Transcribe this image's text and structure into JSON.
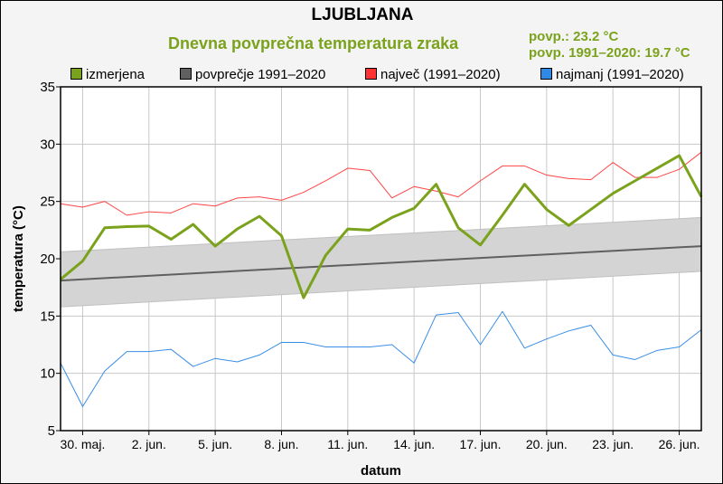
{
  "title": "LJUBLJANA",
  "subtitle": "Dnevna povprečna temperatura zraka",
  "stats": {
    "mean": "povp.: 23.2 °C",
    "mean_ref": "povp. 1991–2020: 19.7 °C"
  },
  "chart_data": {
    "type": "line",
    "xlabel": "datum",
    "ylabel": "temperatura (°C)",
    "ylim": [
      5,
      35
    ],
    "yticks": [
      5,
      10,
      15,
      20,
      25,
      30,
      35
    ],
    "x": [
      "29. maj.",
      "30. maj.",
      "31. maj.",
      "1. jun.",
      "2. jun.",
      "3. jun.",
      "4. jun.",
      "5. jun.",
      "6. jun.",
      "7. jun.",
      "8. jun.",
      "9. jun.",
      "10. jun.",
      "11. jun.",
      "12. jun.",
      "13. jun.",
      "14. jun.",
      "15. jun.",
      "16. jun.",
      "17. jun.",
      "18. jun.",
      "19. jun.",
      "20. jun.",
      "21. jun.",
      "22. jun.",
      "23. jun.",
      "24. jun.",
      "25. jun.",
      "26. jun.",
      "27. jun."
    ],
    "xtick_labels": [
      "30. maj.",
      "2. jun.",
      "5. jun.",
      "8. jun.",
      "11. jun.",
      "14. jun.",
      "17. jun.",
      "20. jun.",
      "23. jun.",
      "26. jun."
    ],
    "grid": true,
    "legend_position": "top",
    "series": [
      {
        "name": "izmerjena",
        "color": "#7ba21c",
        "values": [
          18.2,
          19.8,
          22.7,
          22.8,
          22.85,
          21.7,
          23.0,
          21.1,
          22.6,
          23.7,
          22.0,
          16.6,
          20.3,
          22.6,
          22.5,
          23.6,
          24.4,
          26.5,
          22.7,
          21.2,
          23.8,
          26.5,
          24.3,
          22.9,
          24.3,
          25.7,
          26.8,
          27.9,
          29.0,
          25.4
        ]
      },
      {
        "name": "povprečje 1991–2020",
        "color": "#606060",
        "start": 18.1,
        "end": 21.1,
        "band_low": [
          15.8,
          18.9
        ],
        "band_high": [
          20.6,
          23.6
        ],
        "band_color": "#d4d4d4"
      },
      {
        "name": "največ (1991–2020)",
        "color": "#ff4444",
        "values": [
          24.8,
          24.5,
          25.0,
          23.8,
          24.1,
          24.0,
          24.8,
          24.6,
          25.3,
          25.4,
          25.1,
          25.8,
          26.8,
          27.9,
          27.7,
          25.3,
          26.3,
          25.9,
          25.4,
          26.8,
          28.1,
          28.1,
          27.3,
          27.0,
          26.9,
          28.4,
          27.1,
          27.1,
          27.8,
          29.3
        ]
      },
      {
        "name": "najmanj (1991–2020)",
        "color": "#3a8ee6",
        "values": [
          10.9,
          7.1,
          10.2,
          11.9,
          11.9,
          12.1,
          10.6,
          11.3,
          11.0,
          11.6,
          12.7,
          12.7,
          12.3,
          12.3,
          12.3,
          12.5,
          10.9,
          15.1,
          15.3,
          12.5,
          15.4,
          12.2,
          13.0,
          13.7,
          14.2,
          11.6,
          11.2,
          12.0,
          12.3,
          13.8
        ]
      }
    ]
  }
}
